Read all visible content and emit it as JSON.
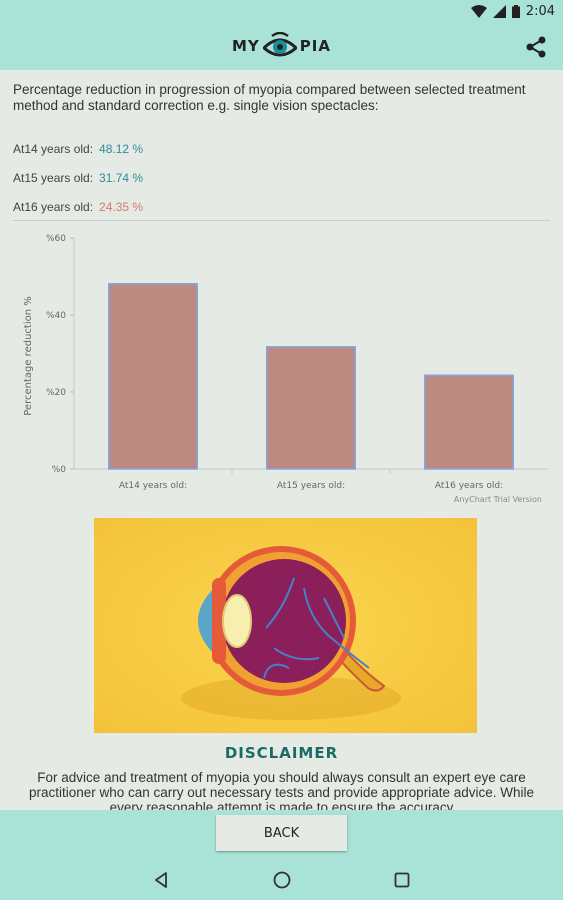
{
  "status_bar": {
    "time": "2:04",
    "icons": [
      "wifi-icon",
      "signal-icon",
      "battery-icon"
    ]
  },
  "app_bar": {
    "logo_left": "MY",
    "logo_right": "PIA",
    "share_icon": "share-icon"
  },
  "intro_text": "Percentage reduction in progression of myopia compared between selected treatment method and standard correction e.g. single vision spectacles:",
  "stats": [
    {
      "label": "At14 years old:",
      "value": "48.12 %",
      "color": "#2f8aa0"
    },
    {
      "label": "At15 years old:",
      "value": "31.74 %",
      "color": "#2f8aa0"
    },
    {
      "label": "At16 years old:",
      "value": "24.35 %",
      "color": "#d07a72"
    }
  ],
  "chart_data": {
    "type": "bar",
    "categories": [
      "At14 years old:",
      "At15 years old:",
      "At16 years old:"
    ],
    "values": [
      48.12,
      31.74,
      24.35
    ],
    "ylabel": "Percentage reduction %",
    "ylim": [
      0,
      60
    ],
    "yticks": [
      "%0",
      "%20",
      "%40",
      "%60"
    ],
    "watermark": "AnyChart Trial Version",
    "bar_color": "#bc8a80",
    "bar_border": "#7fa8e0"
  },
  "disclaimer": {
    "title": "DISCLAIMER",
    "text": "For advice and treatment of myopia you should always consult an expert eye care practitioner who can carry out necessary tests and provide appropriate advice. While every reasonable attempt is made to ensure the accuracy"
  },
  "footer": {
    "back_label": "BACK"
  },
  "colors": {
    "accent": "#a9e2d7",
    "background": "#e6eae4",
    "title": "#1a6b68"
  }
}
